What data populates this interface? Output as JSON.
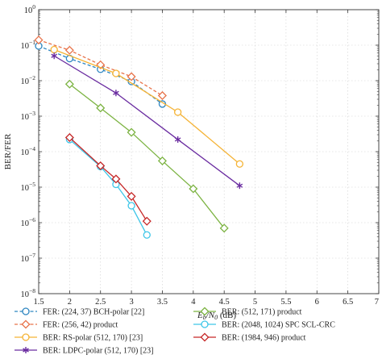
{
  "chart_data": {
    "type": "line",
    "ylabel": "BER/FER",
    "xlabel_parts": {
      "main": "E",
      "sub": "b",
      "mid": "/N",
      "sub2": "0",
      "unit": " (dB)"
    },
    "xlim": [
      1.5,
      7
    ],
    "ylim_log10": [
      -8,
      0
    ],
    "y_scale": "log",
    "grid": true,
    "legend_position": "bottom, two columns",
    "x_ticks": [
      "1.5",
      "2",
      "2.5",
      "3",
      "3.5",
      "4",
      "4.5",
      "5",
      "5.5",
      "6",
      "6.5",
      "7"
    ],
    "y_ticks": [
      {
        "base": "10",
        "exp": "0"
      },
      {
        "base": "10",
        "exp": "−1"
      },
      {
        "base": "10",
        "exp": "−2"
      },
      {
        "base": "10",
        "exp": "−3"
      },
      {
        "base": "10",
        "exp": "−4"
      },
      {
        "base": "10",
        "exp": "−5"
      },
      {
        "base": "10",
        "exp": "−6"
      },
      {
        "base": "10",
        "exp": "−7"
      },
      {
        "base": "10",
        "exp": "−8"
      }
    ],
    "series": [
      {
        "name": "FER: (224, 37) BCH-polar [22]",
        "color": "#2e86c1",
        "marker": "circle",
        "dashed": true,
        "points": [
          [
            1.5,
            0.095
          ],
          [
            2.0,
            0.042
          ],
          [
            2.5,
            0.021
          ],
          [
            3.0,
            0.0095
          ],
          [
            3.5,
            0.0022
          ]
        ]
      },
      {
        "name": "FER: (256, 42) product",
        "color": "#e8734a",
        "marker": "diamond",
        "dashed": true,
        "points": [
          [
            1.5,
            0.14
          ],
          [
            2.0,
            0.072
          ],
          [
            2.5,
            0.028
          ],
          [
            3.0,
            0.013
          ],
          [
            3.5,
            0.0038
          ]
        ]
      },
      {
        "name": "BER: RS-polar (512, 170) [23]",
        "color": "#f5b335",
        "marker": "circle",
        "dashed": false,
        "points": [
          [
            1.75,
            0.075
          ],
          [
            2.75,
            0.016
          ],
          [
            3.75,
            0.0013
          ],
          [
            4.75,
            4.5e-05
          ]
        ]
      },
      {
        "name": "BER: LDPC-polar (512, 170) [23]",
        "color": "#6a2ca0",
        "marker": "star",
        "dashed": false,
        "points": [
          [
            1.75,
            0.05
          ],
          [
            2.75,
            0.0045
          ],
          [
            3.75,
            0.00022
          ],
          [
            4.75,
            1.1e-05
          ]
        ]
      },
      {
        "name": "BER: (512, 171) product",
        "color": "#7cb342",
        "marker": "diamond",
        "dashed": false,
        "points": [
          [
            2.0,
            0.008
          ],
          [
            2.5,
            0.0017
          ],
          [
            3.0,
            0.00035
          ],
          [
            3.5,
            5.5e-05
          ],
          [
            4.0,
            9e-06
          ],
          [
            4.5,
            7e-07
          ]
        ]
      },
      {
        "name": "BER: (2048, 1024) SPC SCL-CRC",
        "color": "#3ec6e8",
        "marker": "circle",
        "dashed": false,
        "points": [
          [
            2.0,
            0.00022
          ],
          [
            2.5,
            3.8e-05
          ],
          [
            2.75,
            1.2e-05
          ],
          [
            3.0,
            3e-06
          ],
          [
            3.25,
            4.5e-07
          ]
        ]
      },
      {
        "name": "BER: (1984, 946) product",
        "color": "#c62828",
        "marker": "diamond",
        "dashed": false,
        "points": [
          [
            2.0,
            0.00025
          ],
          [
            2.5,
            4e-05
          ],
          [
            2.75,
            1.7e-05
          ],
          [
            3.0,
            5.5e-06
          ],
          [
            3.25,
            1.1e-06
          ]
        ]
      }
    ]
  }
}
